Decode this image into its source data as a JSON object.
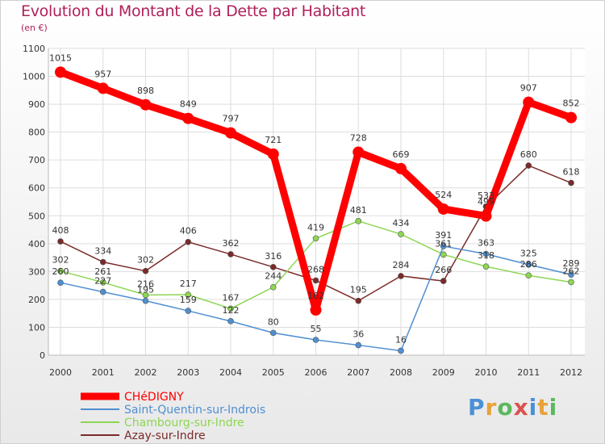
{
  "title": "Evolution du Montant de la Dette par Habitant",
  "unit_label": "(en €)",
  "logo": {
    "text": "Proxiti",
    "letters": [
      "P",
      "r",
      "o",
      "x",
      "i",
      "t",
      "i"
    ],
    "colors": [
      "#4a90d9",
      "#e8a23a",
      "#5cb85c",
      "#d9534f",
      "#4a90d9",
      "#e8a23a",
      "#5cb85c"
    ]
  },
  "chart_data": {
    "type": "line",
    "title": "Evolution du Montant de la Dette par Habitant",
    "ylabel": "(en €)",
    "xlabel": "",
    "x": [
      "2000",
      "2001",
      "2002",
      "2003",
      "2004",
      "2005",
      "2006",
      "2007",
      "2008",
      "2009",
      "2010",
      "2011",
      "2012"
    ],
    "ylim": [
      0,
      1100
    ],
    "yticks": [
      "0",
      "100",
      "200",
      "300",
      "400",
      "500",
      "600",
      "700",
      "800",
      "900",
      "1000",
      "1100"
    ],
    "grid": true,
    "legend_position": "bottom-left",
    "series": [
      {
        "name": "CHéDIGNY",
        "color": "#ff0000",
        "values": [
          1015,
          957,
          898,
          849,
          797,
          721,
          162,
          728,
          669,
          524,
          499,
          907,
          852
        ],
        "labels": [
          "1015",
          "957",
          "898",
          "849",
          "797",
          "721",
          "162",
          "728",
          "669",
          "524",
          "499",
          "907",
          "852"
        ]
      },
      {
        "name": "Saint-Quentin-sur-Indrois",
        "color": "#4f8fd0",
        "values": [
          260,
          227,
          195,
          159,
          122,
          80,
          55,
          36,
          16,
          391,
          363,
          325,
          289
        ],
        "labels": [
          "260",
          "227",
          "195",
          "159",
          "122",
          "80",
          "55",
          "36",
          "16",
          "391",
          "363",
          "325",
          "289"
        ]
      },
      {
        "name": "Chambourg-sur-Indre",
        "color": "#8ed652",
        "values": [
          302,
          261,
          216,
          217,
          167,
          244,
          419,
          481,
          434,
          361,
          318,
          286,
          262
        ],
        "labels": [
          "302",
          "261",
          "216",
          "217",
          "167",
          "244",
          "419",
          "481",
          "434",
          "361",
          "318",
          "286",
          "262"
        ]
      },
      {
        "name": "Azay-sur-Indre",
        "color": "#7b2a2a",
        "values": [
          408,
          334,
          302,
          406,
          362,
          316,
          268,
          195,
          284,
          266,
          533,
          680,
          618
        ],
        "labels": [
          "408",
          "334",
          "302",
          "406",
          "362",
          "316",
          "268",
          "195",
          "284",
          "266",
          "533",
          "680",
          "618"
        ]
      }
    ]
  }
}
